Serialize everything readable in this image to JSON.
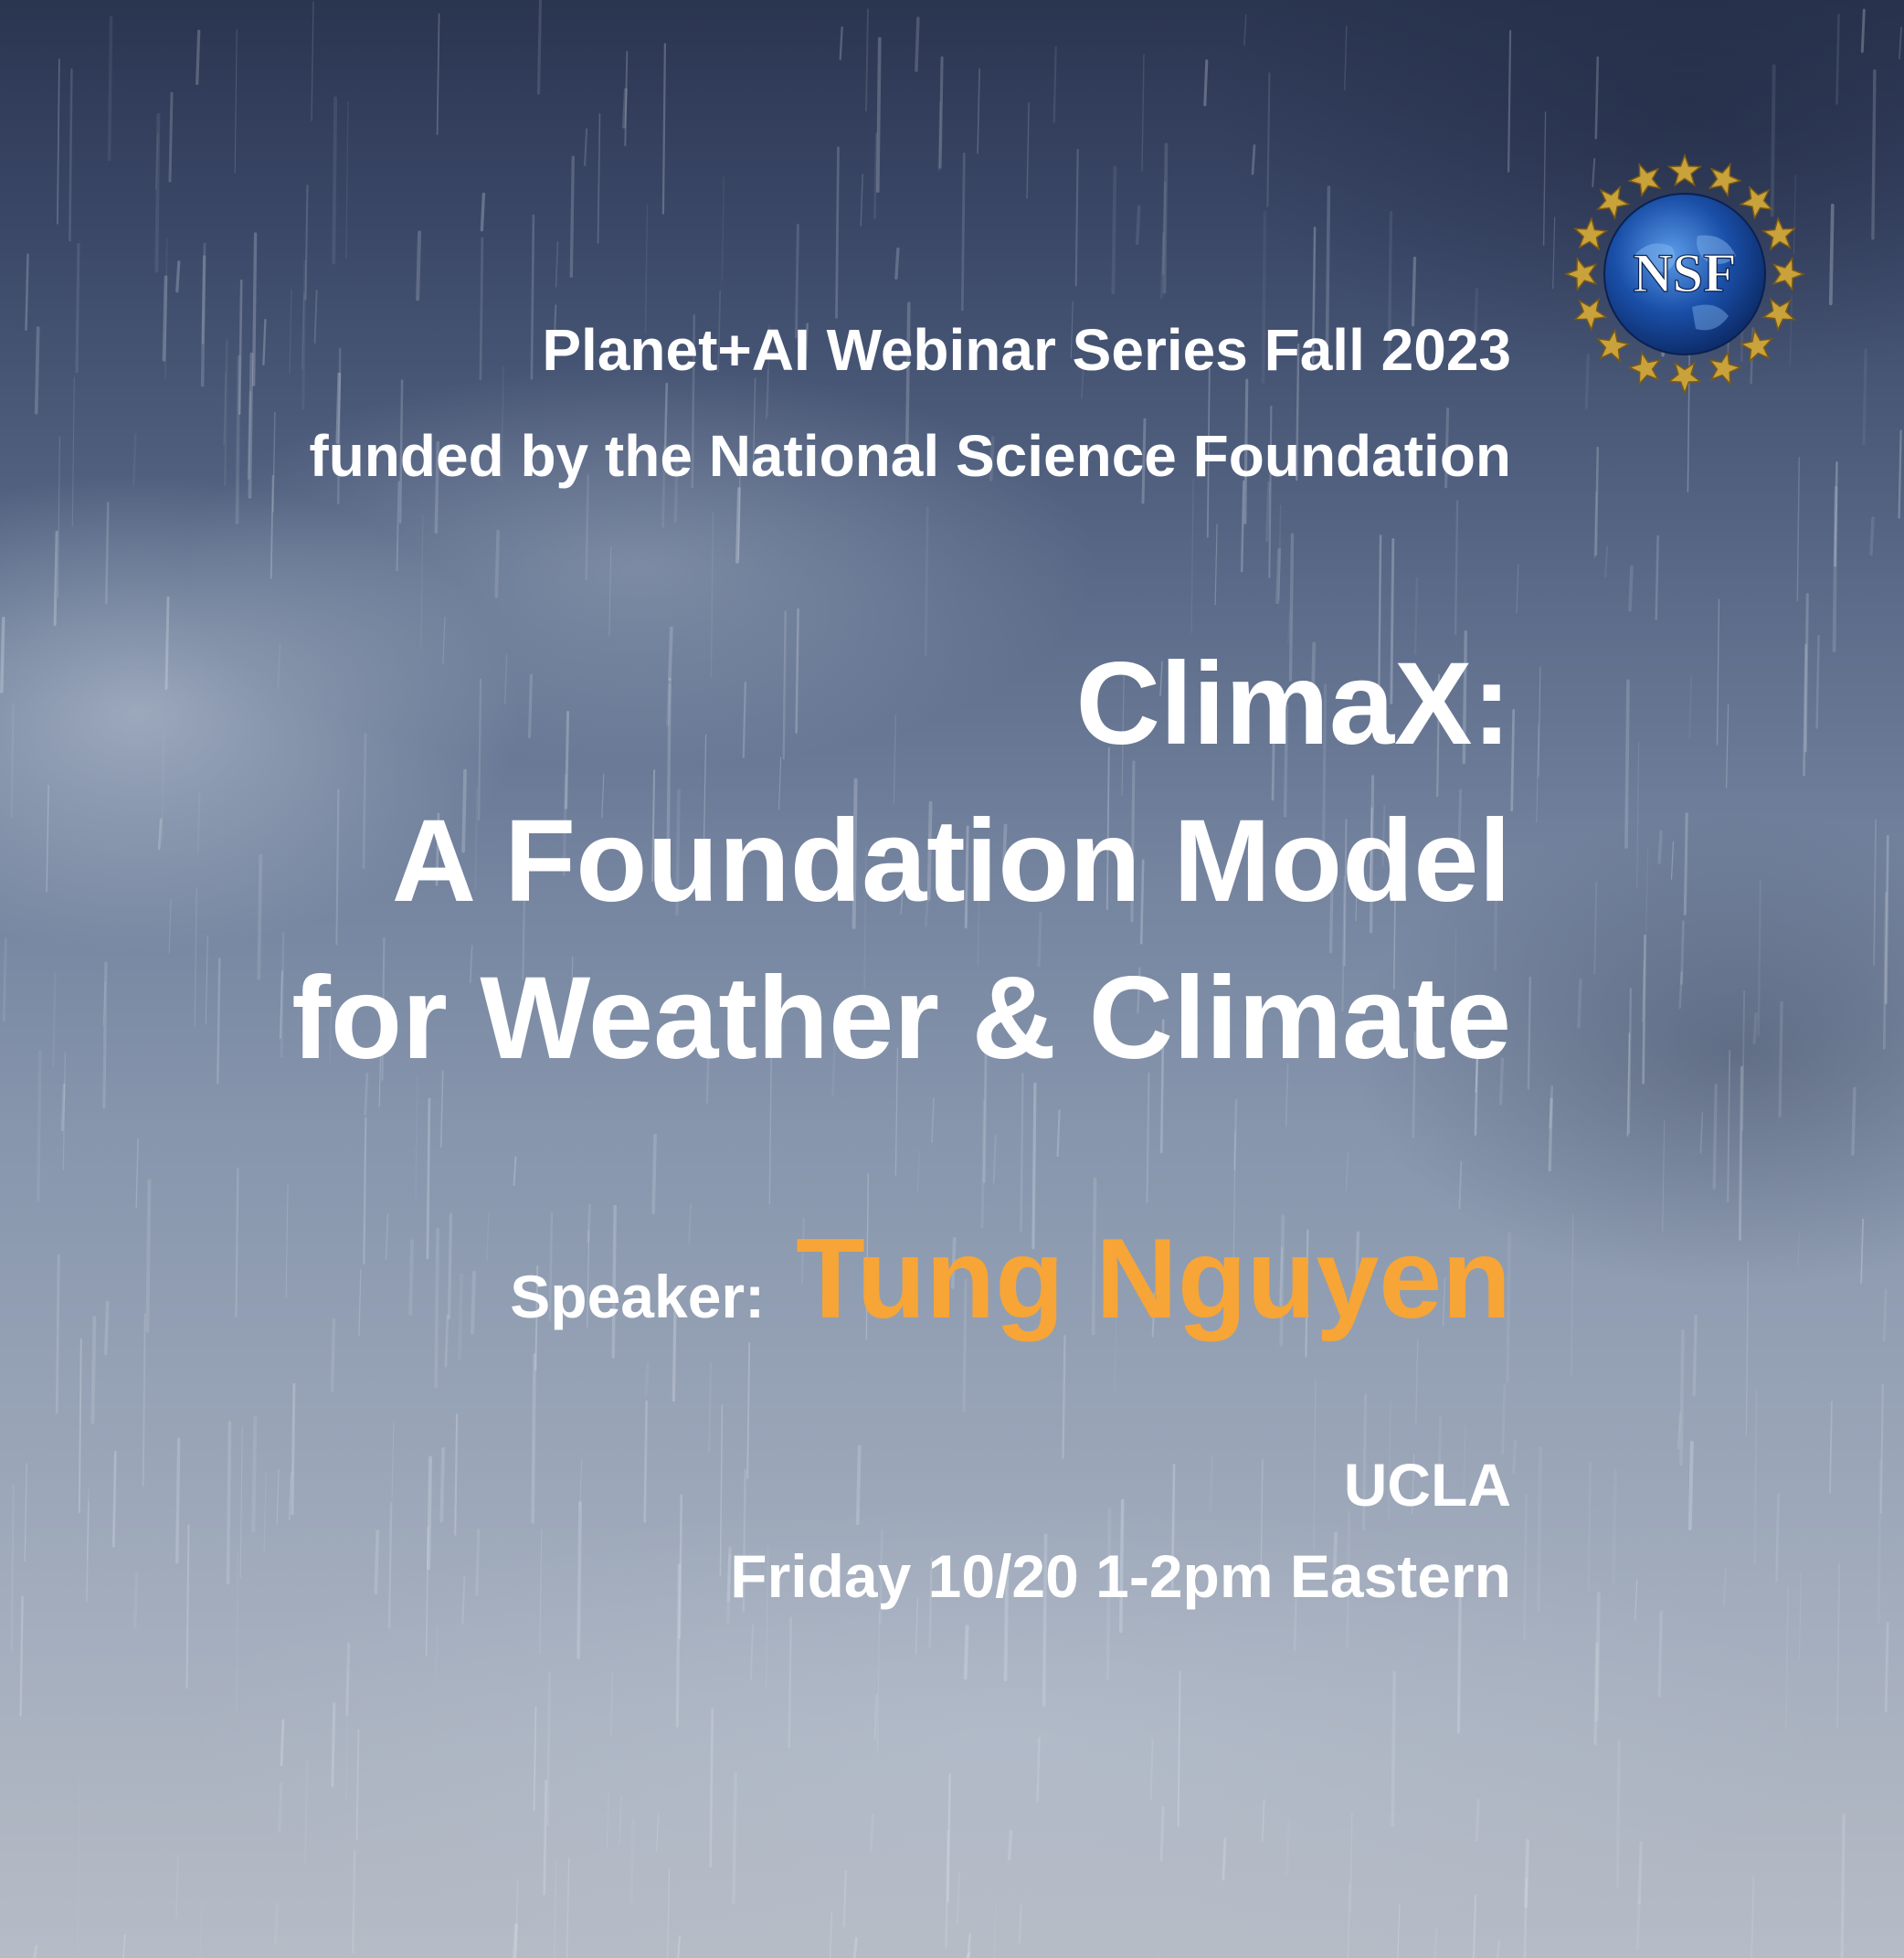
{
  "header": {
    "series_line": "Planet+AI Webinar Series Fall 2023",
    "funding_line": "funded by the National Science Foundation"
  },
  "talk": {
    "title_line1": "ClimaX:",
    "title_line2": "A Foundation Model",
    "title_line3": "for Weather & Climate"
  },
  "speaker": {
    "label": "Speaker:",
    "name": "Tung Nguyen"
  },
  "details": {
    "affiliation": "UCLA",
    "schedule": "Friday 10/20 1-2pm Eastern"
  },
  "logo": {
    "text": "NSF",
    "icon": "nsf-seal-icon"
  },
  "colors": {
    "text": "#ffffff",
    "accent": "#f7a536",
    "sky_top": "#2a3550",
    "sky_bottom": "#b6bcc6",
    "logo_gold": "#c9a23c",
    "logo_blue": "#1a4fa8"
  }
}
